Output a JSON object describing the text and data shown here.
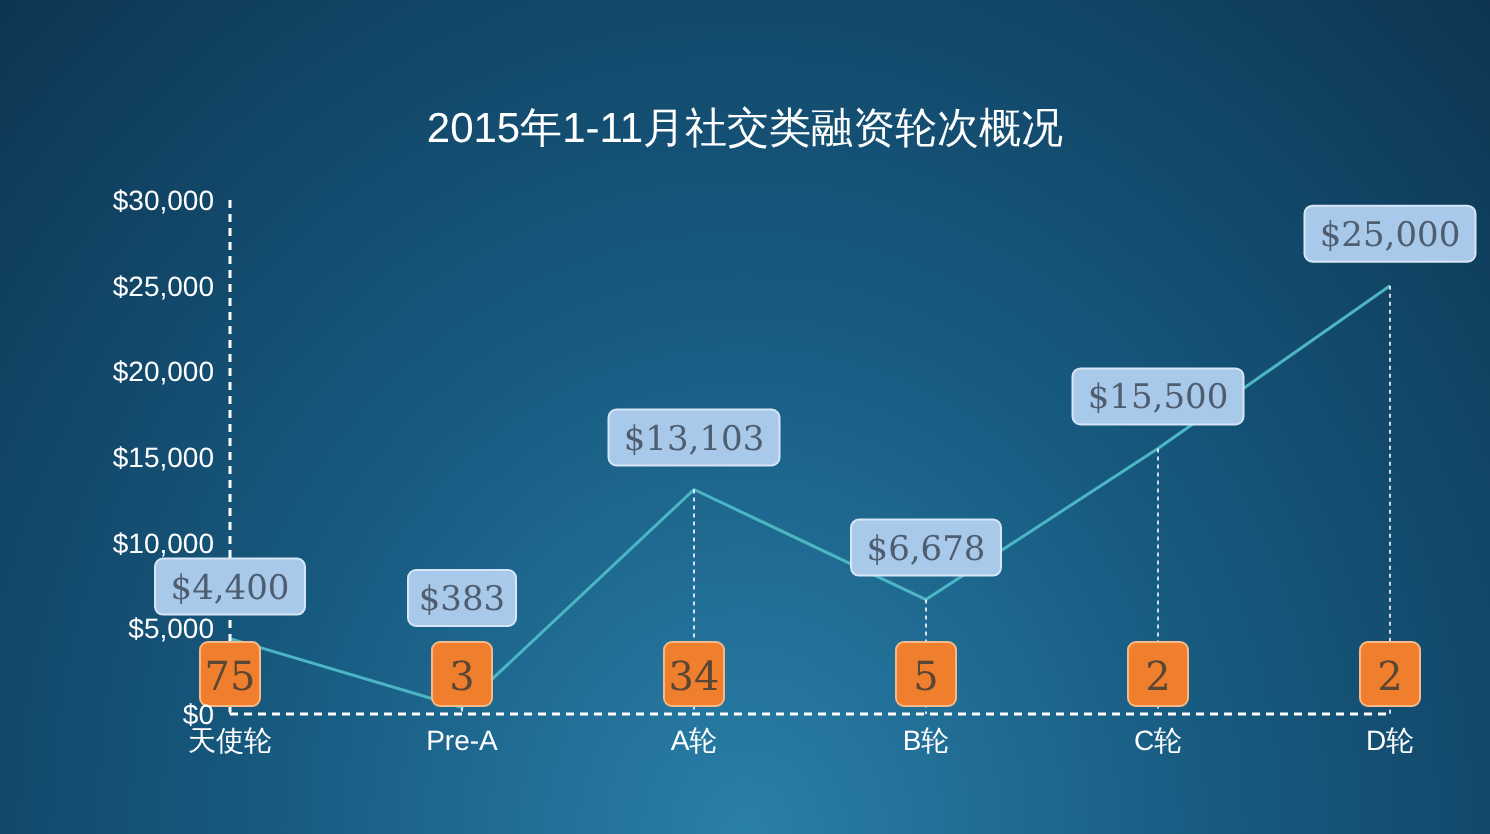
{
  "chart_data": {
    "type": "line",
    "title": "2015年1-11月社交类融资轮次概况",
    "categories": [
      "天使轮",
      "Pre-A",
      "A轮",
      "B轮",
      "C轮",
      "D轮"
    ],
    "values": [
      4400,
      383,
      13103,
      6678,
      15500,
      25000
    ],
    "value_labels": [
      "$4,400",
      "$383",
      "$13,103",
      "$6,678",
      "$15,500",
      "$25,000"
    ],
    "color": "#4db6c4",
    "ylim": [
      0,
      30000
    ],
    "yticks": [
      {
        "value": 0,
        "label": "$0"
      },
      {
        "value": 5000,
        "label": "$5,000"
      },
      {
        "value": 10000,
        "label": "$10,000"
      },
      {
        "value": 15000,
        "label": "$15,000"
      },
      {
        "value": 20000,
        "label": "$20,000"
      },
      {
        "value": 25000,
        "label": "$25,000"
      },
      {
        "value": 30000,
        "label": "$30,000"
      }
    ],
    "annotations": [
      {
        "text": "75",
        "x": "天使轮"
      },
      {
        "text": "3",
        "x": "Pre-A"
      },
      {
        "text": "34",
        "x": "A轮"
      },
      {
        "text": "5",
        "x": "B轮"
      },
      {
        "text": "2",
        "x": "C轮"
      },
      {
        "text": "2",
        "x": "D轮"
      }
    ]
  }
}
